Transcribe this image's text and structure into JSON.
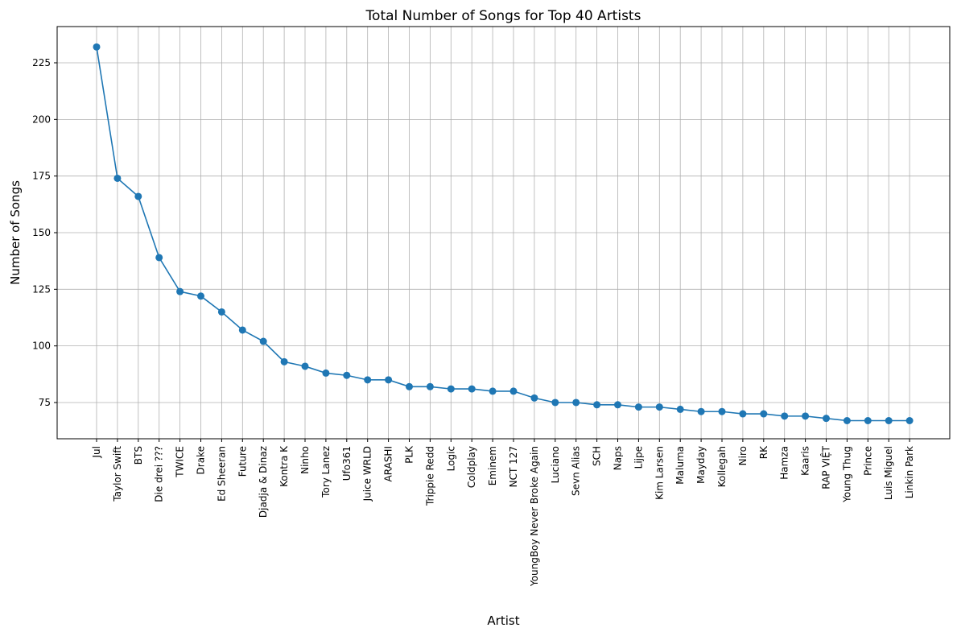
{
  "chart_data": {
    "type": "line",
    "title": "Total Number of Songs for Top 40 Artists",
    "xlabel": "Artist",
    "ylabel": "Number of Songs",
    "categories": [
      "Jul",
      "Taylor Swift",
      "BTS",
      "Die drei ???",
      "TWICE",
      "Drake",
      "Ed Sheeran",
      "Future",
      "Djadja & Dinaz",
      "Kontra K",
      "Ninho",
      "Tory Lanez",
      "Ufo361",
      "Juice WRLD",
      "ARASHI",
      "PLK",
      "Trippie Redd",
      "Logic",
      "Coldplay",
      "Eminem",
      "NCT 127",
      "YoungBoy Never Broke Again",
      "Luciano",
      "Sevn Alias",
      "SCH",
      "Naps",
      "Lijpe",
      "Kim Larsen",
      "Maluma",
      "Mayday",
      "Kollegah",
      "Niro",
      "RK",
      "Hamza",
      "Kaaris",
      "RAP VIỆT",
      "Young Thug",
      "Prince",
      "Luis Miguel",
      "Linkin Park"
    ],
    "values": [
      232,
      174,
      166,
      139,
      124,
      122,
      115,
      107,
      102,
      93,
      91,
      88,
      87,
      85,
      85,
      82,
      82,
      81,
      81,
      80,
      80,
      77,
      75,
      75,
      74,
      74,
      73,
      73,
      72,
      71,
      71,
      70,
      70,
      69,
      69,
      68,
      67,
      67,
      67,
      67
    ],
    "yticks": [
      75,
      100,
      125,
      150,
      175,
      200,
      225
    ],
    "ylim": [
      59,
      241
    ],
    "grid": true,
    "marker": "circle",
    "color": "#1f77b4"
  }
}
